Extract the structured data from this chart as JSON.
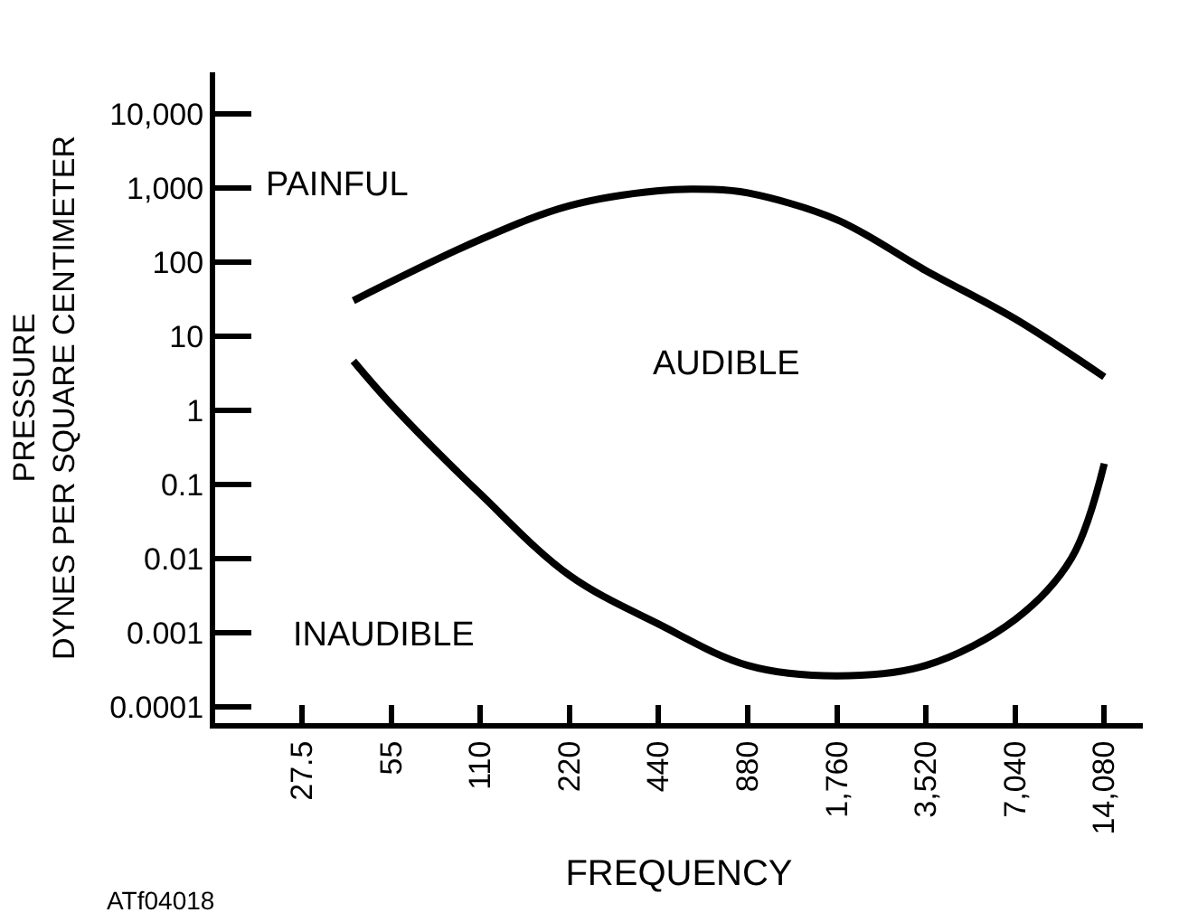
{
  "chart_data": {
    "type": "line",
    "xlabel": "FREQUENCY",
    "ylabel": "PRESSURE\nDYNES PER SQUARE CENTIMETER",
    "log": "xy",
    "marker": "none",
    "line_style": "solid",
    "xlim": [
      14,
      19000
    ],
    "ylim": [
      6e-05,
      36000
    ],
    "xticks": [
      {
        "value": 27.5,
        "label": "27.5"
      },
      {
        "value": 55,
        "label": "55"
      },
      {
        "value": 110,
        "label": "110"
      },
      {
        "value": 220,
        "label": "220"
      },
      {
        "value": 440,
        "label": "440"
      },
      {
        "value": 880,
        "label": "880"
      },
      {
        "value": 1760,
        "label": "1,760"
      },
      {
        "value": 3520,
        "label": "3,520"
      },
      {
        "value": 7040,
        "label": "7,040"
      },
      {
        "value": 14080,
        "label": "14,080"
      }
    ],
    "yticks": [
      {
        "value": 0.0001,
        "label": "0.0001"
      },
      {
        "value": 0.001,
        "label": "0.001"
      },
      {
        "value": 0.01,
        "label": "0.01"
      },
      {
        "value": 0.1,
        "label": "0.1"
      },
      {
        "value": 1,
        "label": "1"
      },
      {
        "value": 10,
        "label": "10"
      },
      {
        "value": 100,
        "label": "100"
      },
      {
        "value": 1000,
        "label": "1,000"
      },
      {
        "value": 10000,
        "label": "10,000"
      }
    ],
    "series": [
      {
        "color": "#000000",
        "x": [
          41,
          110,
          220,
          440,
          664,
          880,
          1760,
          3520,
          7040,
          14080
        ],
        "values": [
          30,
          200,
          570,
          910,
          950,
          850,
          370,
          76,
          17,
          2.8
        ]
      },
      {
        "color": "#000000",
        "x": [
          41,
          55,
          110,
          220,
          440,
          880,
          1760,
          3520,
          7040,
          10900,
          14080
        ],
        "values": [
          4.6,
          1.2,
          0.074,
          0.0059,
          0.0013,
          0.00036,
          0.00026,
          0.00036,
          0.0015,
          0.01,
          0.19
        ]
      }
    ],
    "annotations": [
      "PAINFUL",
      "AUDIBLE",
      "INAUDIBLE",
      "ATf04018"
    ]
  }
}
